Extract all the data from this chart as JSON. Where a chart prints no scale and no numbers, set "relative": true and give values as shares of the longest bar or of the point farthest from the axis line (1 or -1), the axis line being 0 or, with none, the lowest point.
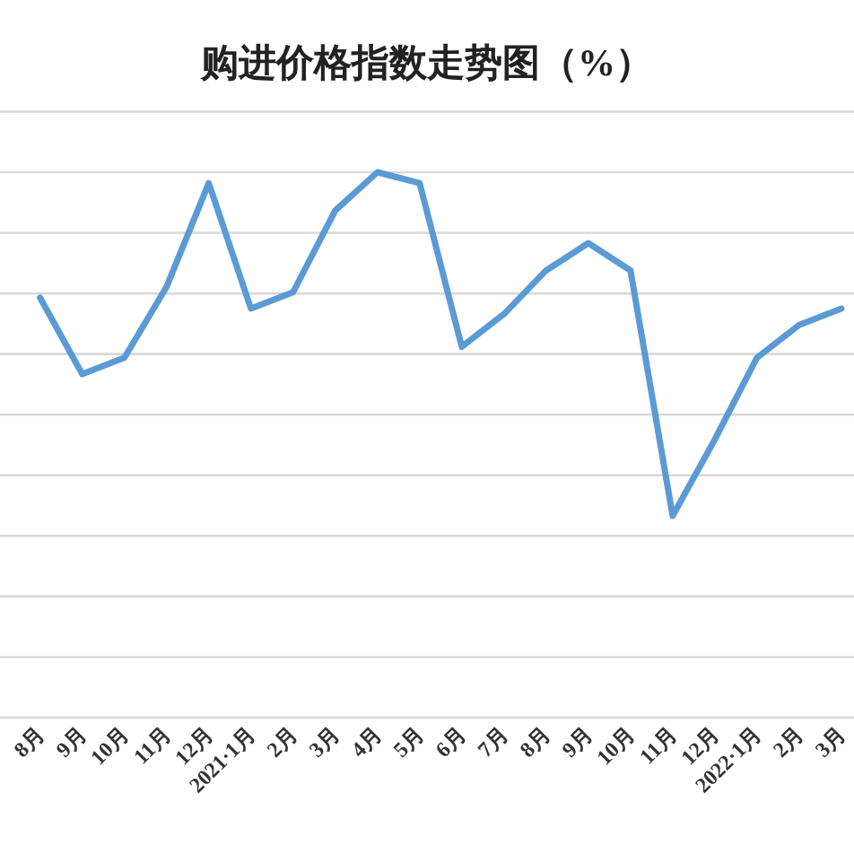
{
  "chart_data": {
    "type": "line",
    "title": "购进价格指数走势图（%）",
    "relative": true,
    "grid": "y",
    "marker": "none",
    "categories": [
      "8月",
      "9月",
      "10月",
      "11月",
      "12月",
      "2021·1月",
      "2月",
      "3月",
      "4月",
      "5月",
      "6月",
      "7月",
      "8月",
      "9月",
      "10月",
      "11月",
      "12月",
      "2022·1月",
      "2月",
      "3月"
    ],
    "series": [
      {
        "color": "#5b9bd5",
        "values": [
          0.77,
          0.63,
          0.66,
          0.79,
          0.98,
          0.75,
          0.78,
          0.93,
          1,
          0.98,
          0.68,
          0.74,
          0.82,
          0.87,
          0.82,
          0.37,
          0.51,
          0.66,
          0.72,
          0.75
        ]
      }
    ]
  }
}
